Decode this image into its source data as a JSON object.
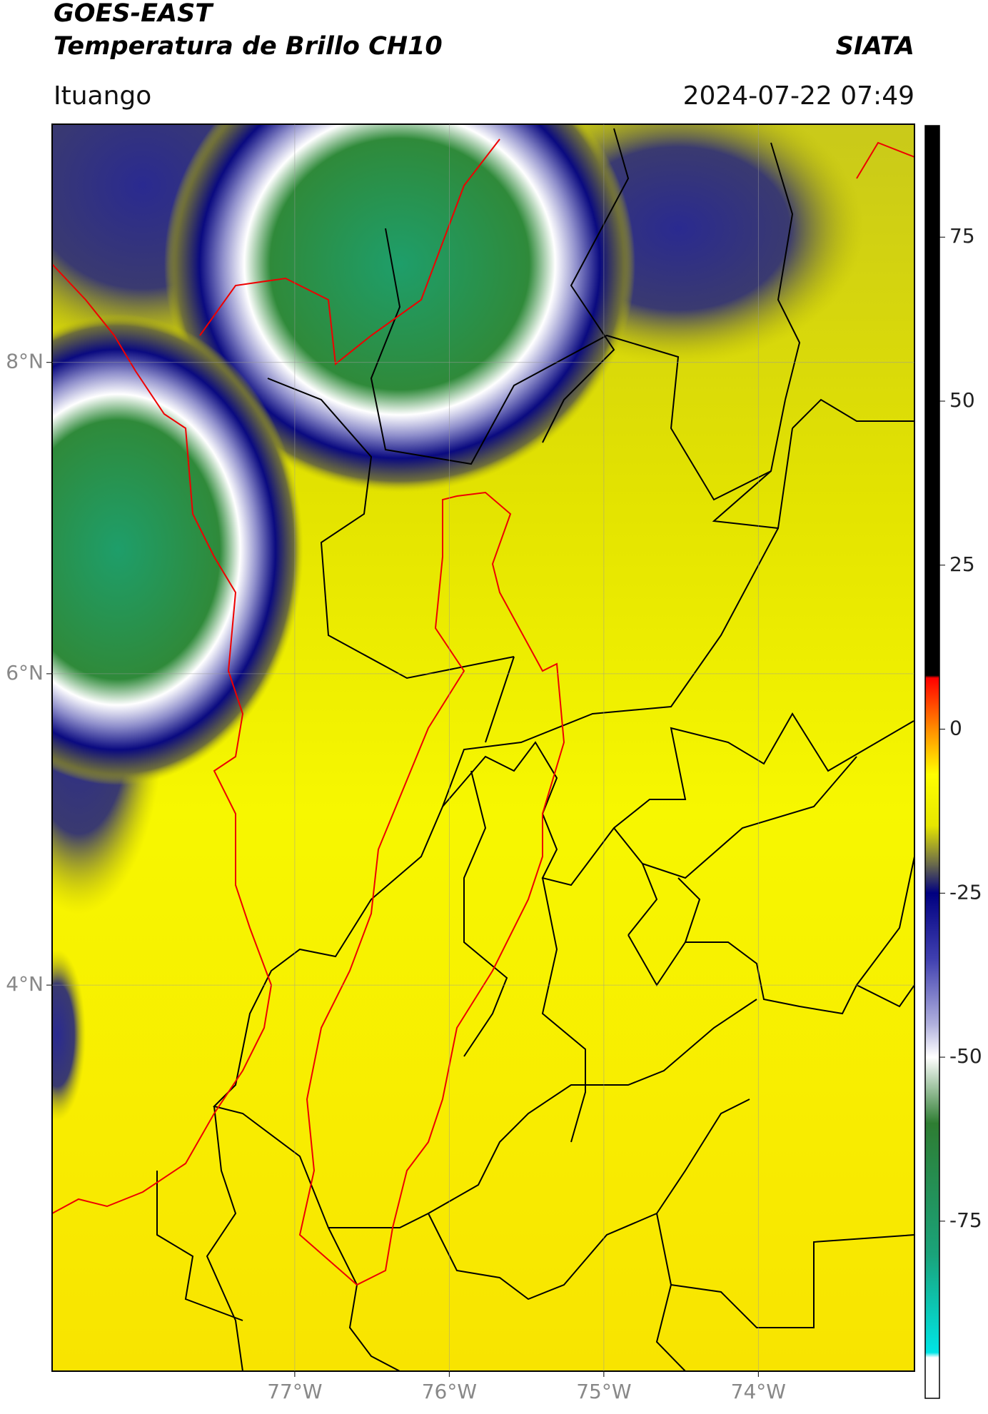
{
  "chart_data": {
    "type": "map",
    "title": [
      "GOES-EAST",
      "Temperatura de Brillo CH10"
    ],
    "source": "SIATA",
    "location": "Ituango",
    "datetime": "2024-07-22 07:49",
    "xlim": [
      -78.57,
      -72.99
    ],
    "ylim": [
      1.52,
      9.53
    ],
    "xticks": [
      {
        "value": -77,
        "label": "77°W"
      },
      {
        "value": -76,
        "label": "76°W"
      },
      {
        "value": -75,
        "label": "75°W"
      },
      {
        "value": -74,
        "label": "74°W"
      }
    ],
    "yticks": [
      {
        "value": 8,
        "label": "8°N"
      },
      {
        "value": 6,
        "label": "6°N"
      },
      {
        "value": 4,
        "label": "4°N"
      }
    ],
    "grid": true,
    "colorbar": {
      "lim": [
        -102,
        92
      ],
      "ticks": [
        75,
        50,
        25,
        0,
        -25,
        -50,
        -75
      ]
    }
  }
}
